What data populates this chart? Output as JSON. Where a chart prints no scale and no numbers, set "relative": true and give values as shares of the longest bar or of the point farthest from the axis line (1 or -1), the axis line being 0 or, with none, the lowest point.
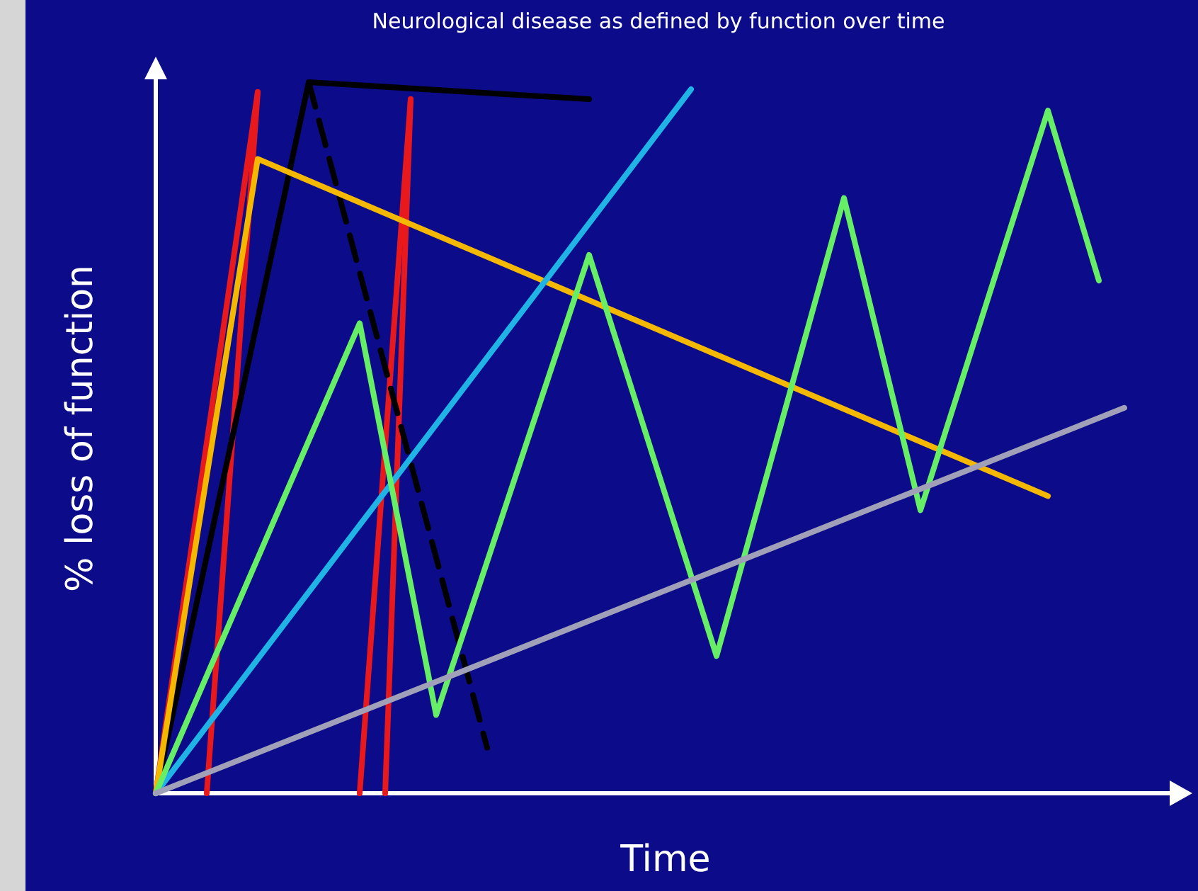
{
  "chart_data": {
    "type": "line",
    "title": "Neurological disease as defined by function over time",
    "xlabel": "Time",
    "ylabel": "% loss of function",
    "relative": true,
    "marker": "none",
    "categories": [
      null,
      null,
      null,
      null,
      null,
      null,
      null,
      null,
      null,
      null,
      null,
      null,
      null,
      null,
      null,
      null,
      null,
      null,
      null,
      null,
      null,
      null,
      null,
      null,
      null,
      null,
      null,
      null,
      null,
      null,
      null,
      null,
      null,
      null,
      null,
      null,
      null,
      null,
      null,
      null,
      null
    ],
    "series": [
      {
        "color": "#e8191c",
        "values": [
          0,
          null,
          null,
          null,
          0.986,
          null,
          null,
          null,
          null,
          null,
          null,
          null,
          null,
          null,
          null,
          null,
          null,
          null,
          null,
          null,
          null,
          null,
          null,
          null,
          null,
          null,
          null,
          null,
          null,
          null,
          null,
          null,
          null,
          null,
          null,
          null,
          null,
          null,
          null,
          null,
          null
        ]
      },
      {
        "color": "#e8191c",
        "values": [
          null,
          null,
          0,
          null,
          0.986,
          null,
          null,
          null,
          null,
          null,
          null,
          null,
          null,
          null,
          null,
          null,
          null,
          null,
          null,
          null,
          null,
          null,
          null,
          null,
          null,
          null,
          null,
          null,
          null,
          null,
          null,
          null,
          null,
          null,
          null,
          null,
          null,
          null,
          null,
          null,
          null
        ]
      },
      {
        "color": "#e8191c",
        "values": [
          null,
          null,
          null,
          null,
          null,
          null,
          null,
          null,
          0,
          null,
          0.976,
          null,
          null,
          null,
          null,
          null,
          null,
          null,
          null,
          null,
          null,
          null,
          null,
          null,
          null,
          null,
          null,
          null,
          null,
          null,
          null,
          null,
          null,
          null,
          null,
          null,
          null,
          null,
          null,
          null,
          null
        ]
      },
      {
        "color": "#e8191c",
        "values": [
          null,
          null,
          null,
          null,
          null,
          null,
          null,
          null,
          null,
          0,
          0.976,
          null,
          null,
          null,
          null,
          null,
          null,
          null,
          null,
          null,
          null,
          null,
          null,
          null,
          null,
          null,
          null,
          null,
          null,
          null,
          null,
          null,
          null,
          null,
          null,
          null,
          null,
          null,
          null,
          null,
          null
        ]
      },
      {
        "color": "#000000",
        "values": [
          0,
          null,
          null,
          null,
          null,
          null,
          1,
          null,
          null,
          null,
          null,
          null,
          null,
          null,
          null,
          null,
          null,
          0.976,
          null,
          null,
          null,
          null,
          null,
          null,
          null,
          null,
          null,
          null,
          null,
          null,
          null,
          null,
          null,
          null,
          null,
          null,
          null,
          null,
          null,
          null,
          null
        ]
      },
      {
        "color": "#000000",
        "line_style": "dashed",
        "values": [
          null,
          null,
          null,
          null,
          null,
          null,
          1,
          null,
          null,
          null,
          null,
          null,
          null,
          0.064,
          null,
          null,
          null,
          null,
          null,
          null,
          null,
          null,
          null,
          null,
          null,
          null,
          null,
          null,
          null,
          null,
          null,
          null,
          null,
          null,
          null,
          null,
          null,
          null,
          null,
          null,
          null
        ]
      },
      {
        "color": "#f5b800",
        "values": [
          0,
          null,
          null,
          null,
          0.892,
          null,
          null,
          null,
          null,
          null,
          null,
          null,
          null,
          null,
          null,
          null,
          null,
          null,
          null,
          null,
          null,
          null,
          null,
          null,
          null,
          null,
          null,
          null,
          null,
          null,
          null,
          null,
          null,
          null,
          null,
          0.418,
          null,
          null,
          null,
          null,
          null
        ]
      },
      {
        "color": "#1fb3e6",
        "values": [
          0,
          null,
          null,
          null,
          null,
          null,
          null,
          null,
          null,
          null,
          null,
          null,
          null,
          null,
          null,
          null,
          null,
          null,
          null,
          null,
          null,
          0.99,
          null,
          null,
          null,
          null,
          null,
          null,
          null,
          null,
          null,
          null,
          null,
          null,
          null,
          null,
          null,
          null,
          null,
          null,
          null
        ]
      },
      {
        "color": "#66ee66",
        "values": [
          0,
          null,
          null,
          null,
          null,
          null,
          null,
          null,
          0.661,
          null,
          null,
          0.11,
          null,
          null,
          null,
          null,
          null,
          0.757,
          null,
          null,
          null,
          null,
          0.193,
          null,
          null,
          null,
          null,
          0.837,
          null,
          null,
          0.398,
          null,
          null,
          null,
          null,
          0.96,
          null,
          0.721,
          null,
          null,
          null
        ]
      },
      {
        "color": "#a0a0b8",
        "values": [
          0,
          null,
          null,
          null,
          null,
          null,
          null,
          null,
          null,
          null,
          null,
          null,
          null,
          null,
          null,
          null,
          null,
          null,
          null,
          null,
          null,
          null,
          null,
          null,
          null,
          null,
          null,
          null,
          null,
          null,
          null,
          null,
          null,
          null,
          null,
          null,
          null,
          null,
          0.542,
          null,
          null
        ]
      }
    ]
  }
}
